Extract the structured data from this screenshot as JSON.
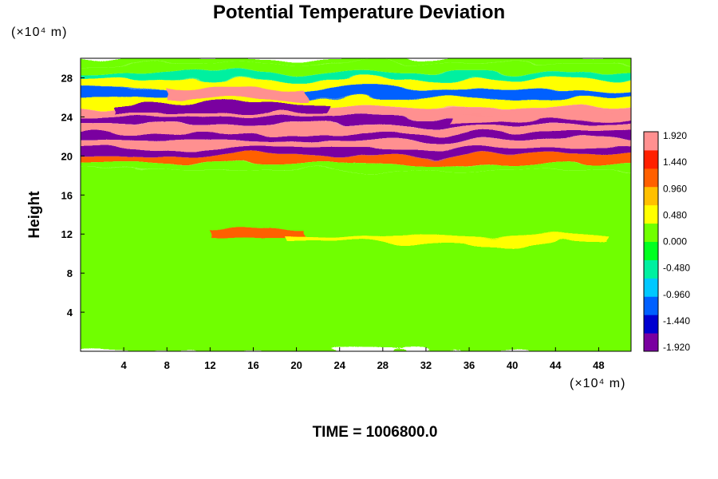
{
  "chart_data": {
    "type": "heatmap",
    "title": "Potential Temperature Deviation",
    "ylabel": "Height",
    "y_unit": "(×10⁴ m)",
    "x_unit": "(×10⁴ m)",
    "footer": "TIME = 1006800.0",
    "xlim": [
      0,
      51
    ],
    "ylim": [
      0,
      30
    ],
    "x_ticks": [
      4,
      8,
      12,
      16,
      20,
      24,
      28,
      32,
      36,
      40,
      44,
      48
    ],
    "y_ticks": [
      4,
      8,
      12,
      16,
      20,
      24,
      28
    ],
    "colorbar": {
      "min": -1.92,
      "max": 1.92,
      "tick_labels": [
        "1.920",
        "1.440",
        "0.960",
        "0.480",
        "0.000",
        "-0.480",
        "-0.960",
        "-1.440",
        "-1.920"
      ]
    },
    "colormap": [
      "#7a00a0",
      "#0000d0",
      "#0060ff",
      "#00c8ff",
      "#00f0a0",
      "#00ff20",
      "#70ff00",
      "#ffff00",
      "#ffc000",
      "#ff6000",
      "#ff2000",
      "#ff9090"
    ],
    "bands": [
      {
        "x": [
          0,
          51
        ],
        "y": [
          29.5,
          30
        ],
        "value": 0.2
      },
      {
        "x": [
          0,
          51
        ],
        "y": [
          28.5,
          29.5
        ],
        "value": 0.3
      },
      {
        "x": [
          0,
          51
        ],
        "y": [
          27.8,
          28.5
        ],
        "value": -0.4
      },
      {
        "x": [
          0,
          51
        ],
        "y": [
          26.8,
          27.8
        ],
        "value": 0.5
      },
      {
        "x": [
          0,
          51
        ],
        "y": [
          26.0,
          26.8
        ],
        "value": -1.2
      },
      {
        "x": [
          0,
          51
        ],
        "y": [
          25.0,
          26.0
        ],
        "value": 0.4
      },
      {
        "x": [
          0,
          51
        ],
        "y": [
          24.0,
          25.0
        ],
        "value": 1.8
      },
      {
        "x": [
          0,
          51
        ],
        "y": [
          23.2,
          24.0
        ],
        "value": -1.9
      },
      {
        "x": [
          0,
          51
        ],
        "y": [
          22.4,
          23.2
        ],
        "value": 1.9
      },
      {
        "x": [
          0,
          51
        ],
        "y": [
          21.6,
          22.4
        ],
        "value": -1.9
      },
      {
        "x": [
          0,
          51
        ],
        "y": [
          20.8,
          21.6
        ],
        "value": 1.9
      },
      {
        "x": [
          0,
          51
        ],
        "y": [
          20.0,
          20.8
        ],
        "value": -1.9
      },
      {
        "x": [
          0,
          51
        ],
        "y": [
          19.2,
          20.0
        ],
        "value": 1.1
      },
      {
        "x": [
          0,
          51
        ],
        "y": [
          18.5,
          19.2
        ],
        "value": 0.3
      },
      {
        "x": [
          0,
          51
        ],
        "y": [
          0,
          18.5
        ],
        "value": 0.0
      },
      {
        "x": [
          9,
          20
        ],
        "y": [
          25.7,
          27.0
        ],
        "value": 1.9
      },
      {
        "x": [
          4,
          22
        ],
        "y": [
          24.4,
          25.3
        ],
        "value": -1.9
      },
      {
        "x": [
          35,
          51
        ],
        "y": [
          23.6,
          24.4
        ],
        "value": 1.8
      },
      {
        "x": [
          13,
          20
        ],
        "y": [
          11.6,
          12.4
        ],
        "value": 1.0
      },
      {
        "x": [
          20,
          48
        ],
        "y": [
          11.2,
          11.8
        ],
        "value": 0.5
      }
    ]
  }
}
